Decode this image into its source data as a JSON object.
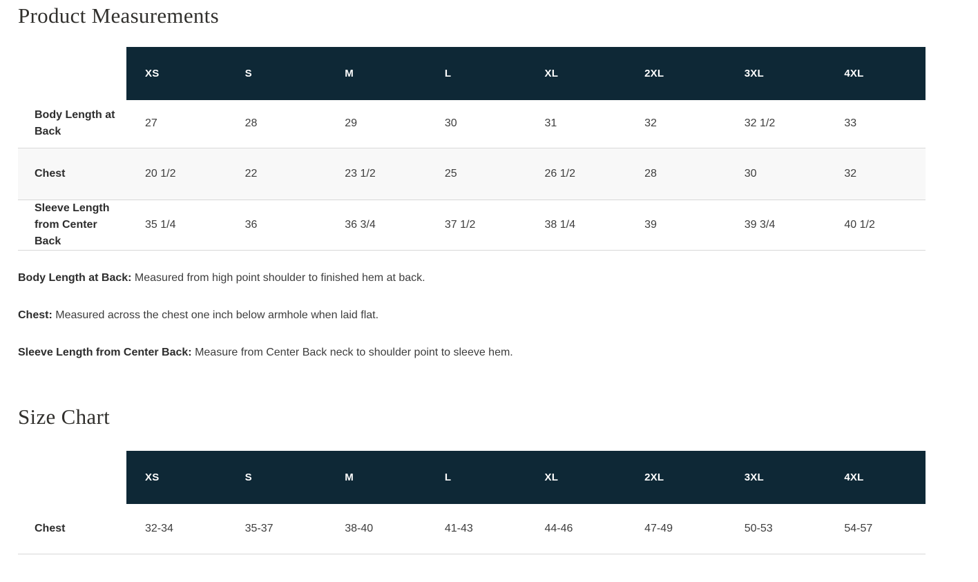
{
  "colors": {
    "header_bg": "#0e2836",
    "header_text": "#ffffff",
    "row_stripe": "#f8f8f8",
    "border": "#d8d8d8",
    "title_text": "#31302d",
    "body_text": "#3d3d3d"
  },
  "product_measurements": {
    "title": "Product Measurements",
    "sizes": [
      "XS",
      "S",
      "M",
      "L",
      "XL",
      "2XL",
      "3XL",
      "4XL"
    ],
    "rows": [
      {
        "label": "Body Length at Back",
        "values": [
          "27",
          "28",
          "29",
          "30",
          "31",
          "32",
          "32 1/2",
          "33"
        ]
      },
      {
        "label": "Chest",
        "values": [
          "20 1/2",
          "22",
          "23 1/2",
          "25",
          "26 1/2",
          "28",
          "30",
          "32"
        ]
      },
      {
        "label": "Sleeve Length from Center Back",
        "values": [
          "35 1/4",
          "36",
          "36 3/4",
          "37 1/2",
          "38 1/4",
          "39",
          "39 3/4",
          "40 1/2"
        ]
      }
    ],
    "notes": [
      {
        "term": "Body Length at Back:",
        "definition": "Measured from high point shoulder to finished hem at back."
      },
      {
        "term": "Chest:",
        "definition": "Measured across the chest one inch below armhole when laid flat."
      },
      {
        "term": "Sleeve Length from Center Back:",
        "definition": "Measure from Center Back neck to shoulder point to sleeve hem."
      }
    ]
  },
  "size_chart": {
    "title": "Size Chart",
    "sizes": [
      "XS",
      "S",
      "M",
      "L",
      "XL",
      "2XL",
      "3XL",
      "4XL"
    ],
    "rows": [
      {
        "label": "Chest",
        "values": [
          "32-34",
          "35-37",
          "38-40",
          "41-43",
          "44-46",
          "47-49",
          "50-53",
          "54-57"
        ]
      }
    ]
  }
}
